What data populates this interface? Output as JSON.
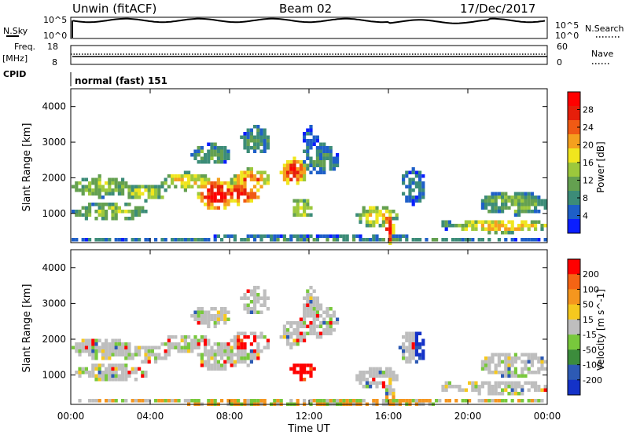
{
  "header": {
    "radar": "Unwin (fitACF)",
    "beam": "Beam 02",
    "date": "17/Dec/2017"
  },
  "param_panel": {
    "nsky_label": "N.Sky",
    "nsearch_label": "N.Search",
    "nsky_ticks": [
      "10^5",
      "10^0"
    ],
    "nsearch_ticks": [
      "10^5",
      "10^0"
    ],
    "freq_label_1": "Freq.",
    "freq_label_2": "[MHz]",
    "freq_ticks": [
      "18",
      "8"
    ],
    "nave_label": "Nave",
    "nave_ticks": [
      "60",
      "0"
    ],
    "cpid_label": "CPID",
    "cpid_value": "normal (fast) 151"
  },
  "chart_data": [
    {
      "type": "heatmap",
      "name": "power",
      "ylabel": "Slant Range [km]",
      "xlabel": "Time UT",
      "x_ticks": [
        "00:00",
        "04:00",
        "08:00",
        "12:00",
        "16:00",
        "20:00",
        "00:00"
      ],
      "x_range_hours": [
        0,
        24
      ],
      "y_ticks": [
        1000,
        2000,
        3000,
        4000
      ],
      "ylim": [
        180,
        4500
      ],
      "colorbar": {
        "label": "Power [dB]",
        "ticks": [
          "4",
          "8",
          "12",
          "16",
          "20",
          "24",
          "28"
        ],
        "colors": [
          "#0a1eff",
          "#1e5fc8",
          "#3c8c78",
          "#64a050",
          "#9cc83c",
          "#f0e61e",
          "#f5a01e",
          "#f05a14",
          "#e61e0a",
          "#ff0000"
        ]
      }
    },
    {
      "type": "heatmap",
      "name": "velocity",
      "ylabel": "Slant Range [km]",
      "xlabel": "Time UT",
      "x_ticks": [
        "00:00",
        "04:00",
        "08:00",
        "12:00",
        "16:00",
        "20:00",
        "00:00"
      ],
      "x_range_hours": [
        0,
        24
      ],
      "y_ticks": [
        1000,
        2000,
        3000,
        4000
      ],
      "ylim": [
        180,
        4500
      ],
      "colorbar": {
        "label": "Velocity [m s^-1]",
        "ticks": [
          "200",
          "100",
          "50",
          "15",
          "-15",
          "-50",
          "-100",
          "-200"
        ],
        "colors": [
          "#1432c8",
          "#2d5ab4",
          "#3c8c3c",
          "#78c83c",
          "#bebebe",
          "#f5c81e",
          "#f5961e",
          "#f56414",
          "#ff0000"
        ]
      }
    }
  ],
  "footer": {
    "xlabel": "Time UT"
  }
}
